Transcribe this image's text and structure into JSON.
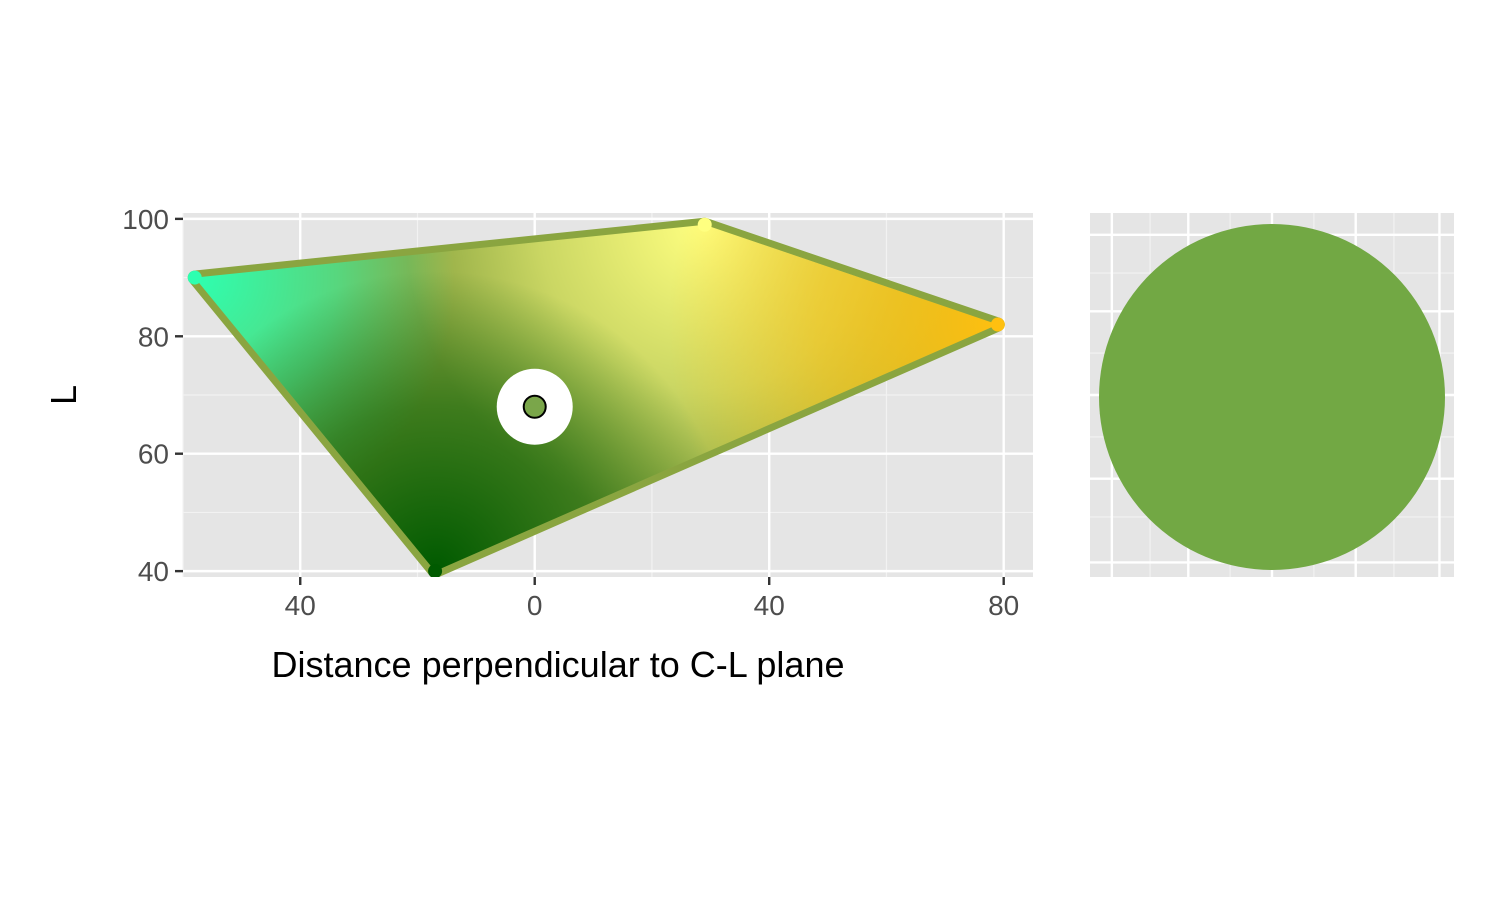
{
  "chart_data": [
    {
      "type": "scatter",
      "xlabel": "Distance perpendicular to C-L plane",
      "ylabel": "L",
      "xlim": [
        -60,
        85
      ],
      "ylim": [
        39,
        101
      ],
      "x_ticks": [
        -40,
        0,
        40,
        80
      ],
      "x_tick_labels": [
        "40",
        "0",
        "40",
        "80"
      ],
      "y_ticks": [
        40,
        60,
        80,
        100
      ],
      "y_tick_labels": [
        "40",
        "60",
        "80",
        "100"
      ],
      "grid": true,
      "panel_background": "#e5e5e5",
      "region": {
        "description": "filled region of colored points",
        "vertices": [
          {
            "x": -58,
            "y": 90,
            "color": "#2effb0"
          },
          {
            "x": 29,
            "y": 99,
            "color": "#ffff80"
          },
          {
            "x": 79,
            "y": 82,
            "color": "#ffc010"
          },
          {
            "x": -17,
            "y": 40,
            "color": "#005a00"
          }
        ]
      },
      "highlight": {
        "x": 0,
        "y": 68,
        "color": "#7aa64a"
      }
    },
    {
      "type": "swatch",
      "color": "#72a844",
      "grid": true,
      "panel_background": "#e5e5e5"
    }
  ]
}
